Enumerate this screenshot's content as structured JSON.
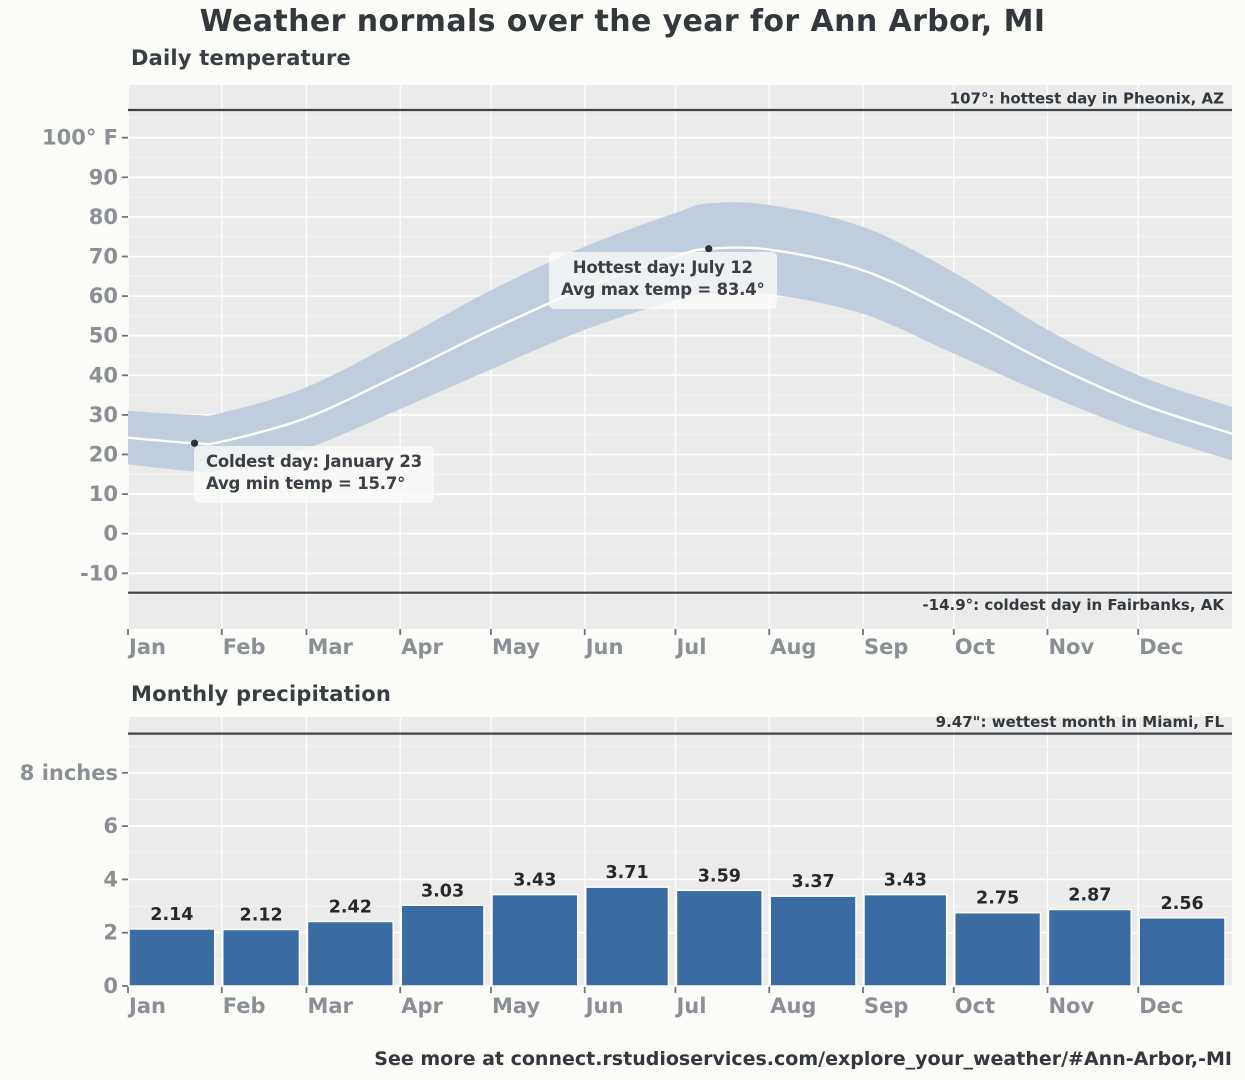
{
  "title": "Weather normals over the year for Ann Arbor, MI",
  "caption": "See more at connect.rstudioservices.com/explore_your_weather/#Ann-Arbor,-MI",
  "months": [
    "Jan",
    "Feb",
    "Mar",
    "Apr",
    "May",
    "Jun",
    "Jul",
    "Aug",
    "Sep",
    "Oct",
    "Nov",
    "Dec"
  ],
  "colors": {
    "page_bg": "#fcfcf9",
    "panel_bg": "#ebebeb",
    "grid_major": "#ffffff",
    "grid_minor": "#ffffff",
    "band": "#c0cddc",
    "mean_line": "#ffffff",
    "bar": "#3a6ca3",
    "bar_stroke": "#ffffff",
    "ref_line": "#3f4449",
    "axis_text": "#8a9095",
    "dark_text": "#34393e",
    "value_text": "#26292c",
    "tick": "#6f7479",
    "dot": "#2c3135"
  },
  "chart_data": [
    {
      "id": "daily-temperature",
      "type": "area",
      "title": "Daily temperature",
      "ylabel": "degrees F",
      "xlabel": "month of year",
      "ylim": [
        -24.1,
        113.3
      ],
      "x_unit": "day_of_year",
      "y_ticks": [
        {
          "v": 100,
          "label": "100° F"
        },
        {
          "v": 90,
          "label": "90"
        },
        {
          "v": 80,
          "label": "80"
        },
        {
          "v": 70,
          "label": "70"
        },
        {
          "v": 60,
          "label": "60"
        },
        {
          "v": 50,
          "label": "50"
        },
        {
          "v": 40,
          "label": "40"
        },
        {
          "v": 30,
          "label": "30"
        },
        {
          "v": 20,
          "label": "20"
        },
        {
          "v": 10,
          "label": "10"
        },
        {
          "v": 0,
          "label": "0"
        },
        {
          "v": -10,
          "label": "-10"
        }
      ],
      "days": [
        0,
        22,
        31,
        59,
        90,
        120,
        151,
        181,
        192,
        212,
        243,
        273,
        304,
        334,
        365
      ],
      "avg_max": [
        31.0,
        30.0,
        30.5,
        37.0,
        49.0,
        61.5,
        72.5,
        81.0,
        83.4,
        83.0,
        77.5,
        66.0,
        51.5,
        40.0,
        32.0
      ],
      "avg_min": [
        17.5,
        15.7,
        16.0,
        21.5,
        31.5,
        41.5,
        51.5,
        59.0,
        60.5,
        60.5,
        55.5,
        45.5,
        35.0,
        26.0,
        18.5
      ],
      "ref_lines": [
        {
          "value": 107,
          "label": "107°: hottest day in Pheonix, AZ",
          "label_side": "above"
        },
        {
          "value": -14.9,
          "label": "-14.9°: coldest day in Fairbanks, AK",
          "label_side": "below"
        }
      ],
      "annotations": [
        {
          "id": "hottest",
          "line1": "Hottest day: July 12",
          "line2": "Avg max temp = 83.4°",
          "day": 192,
          "value": 71.95
        },
        {
          "id": "coldest",
          "line1": "Coldest day: January 23",
          "line2": "Avg min temp = 15.7°",
          "day": 22,
          "value": 22.85
        }
      ]
    },
    {
      "id": "monthly-precipitation",
      "type": "bar",
      "title": "Monthly precipitation",
      "ylabel": "inches",
      "xlabel": "month of year",
      "ylim": [
        0,
        10.1
      ],
      "y_ticks": [
        {
          "v": 0,
          "label": "0"
        },
        {
          "v": 2,
          "label": "2"
        },
        {
          "v": 4,
          "label": "4"
        },
        {
          "v": 6,
          "label": "6"
        },
        {
          "v": 8,
          "label": "8 inches"
        }
      ],
      "categories": [
        "Jan",
        "Feb",
        "Mar",
        "Apr",
        "May",
        "Jun",
        "Jul",
        "Aug",
        "Sep",
        "Oct",
        "Nov",
        "Dec"
      ],
      "values": [
        2.14,
        2.12,
        2.42,
        3.03,
        3.43,
        3.71,
        3.59,
        3.37,
        3.43,
        2.75,
        2.87,
        2.56
      ],
      "ref_lines": [
        {
          "value": 9.47,
          "label": "9.47\": wettest month in Miami, FL",
          "label_side": "above"
        }
      ]
    }
  ]
}
